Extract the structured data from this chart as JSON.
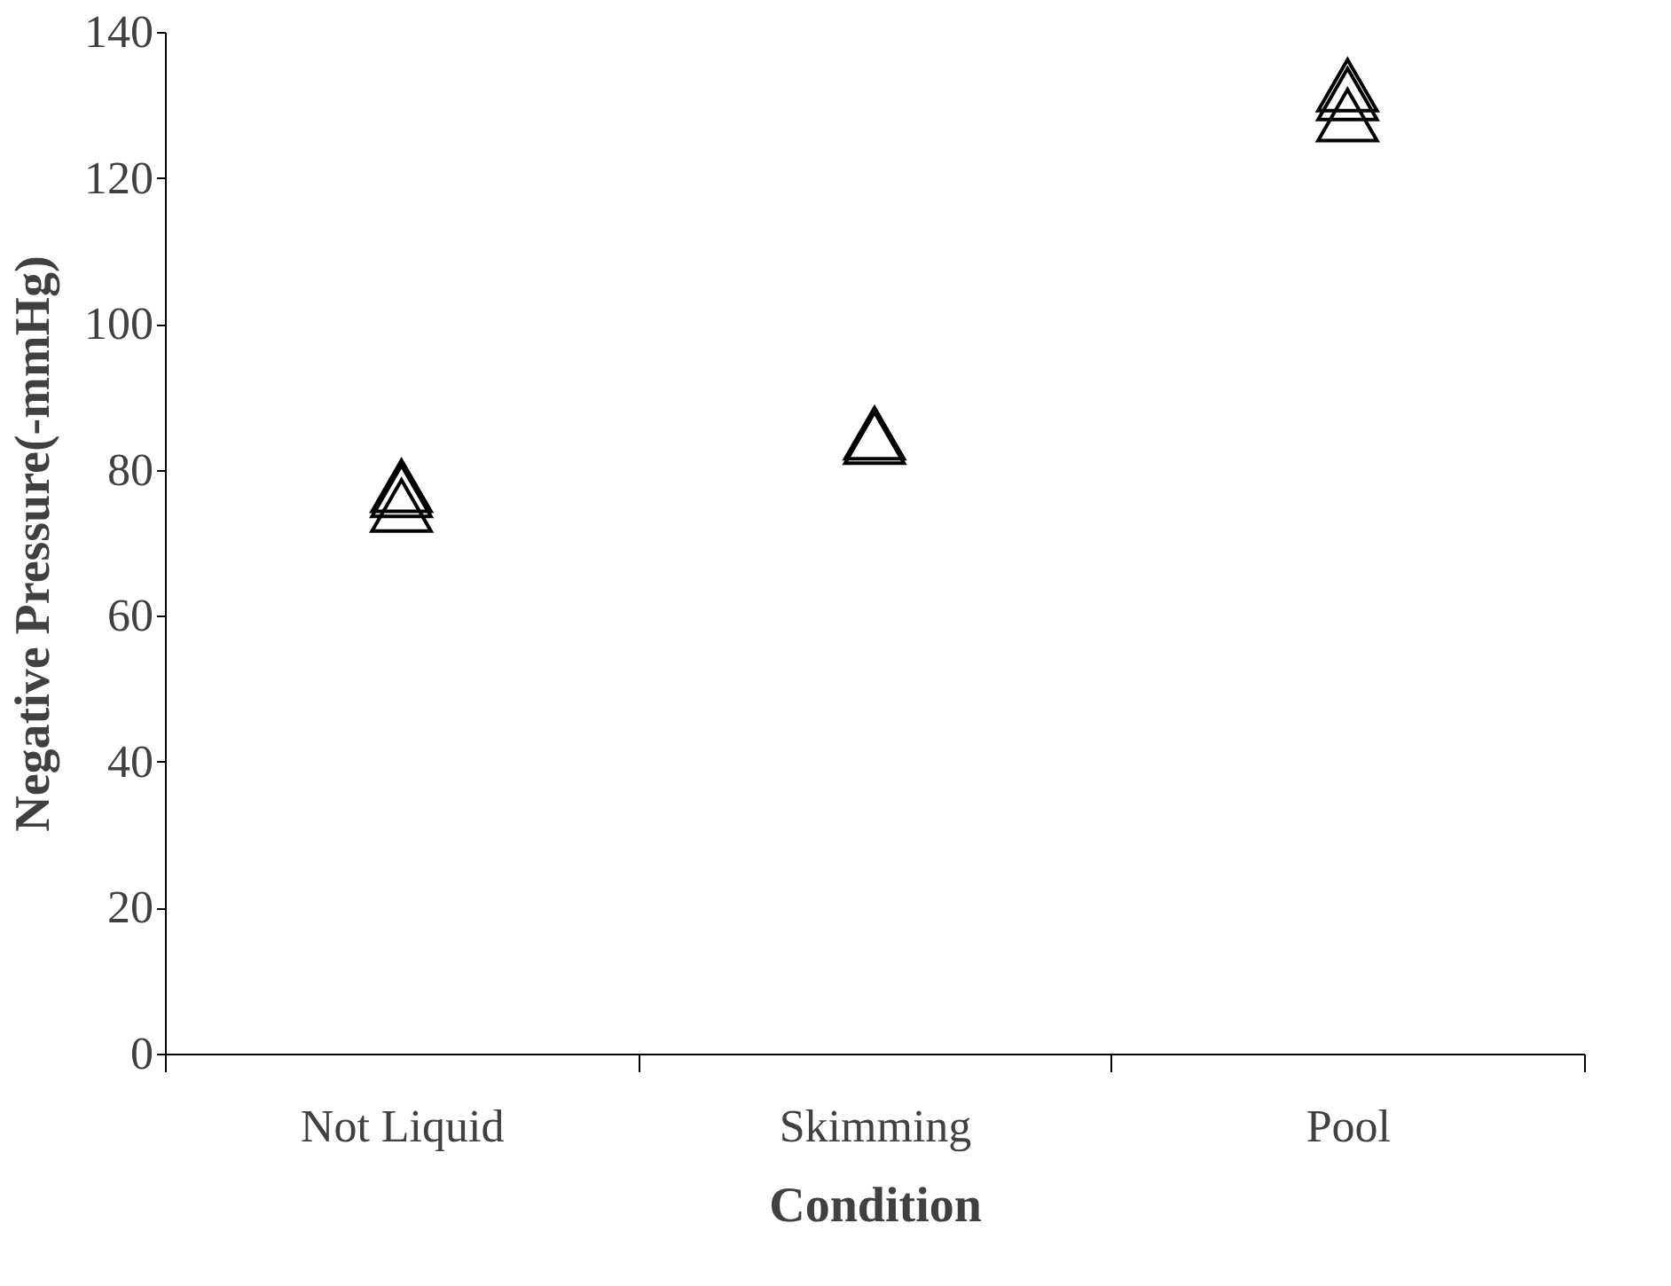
{
  "chart_data": {
    "type": "scatter",
    "xlabel": "Condition",
    "ylabel": "Negative Pressure(-mmHg)",
    "categories": [
      "Not Liquid",
      "Skimming",
      "Pool"
    ],
    "series": [
      {
        "color": "#000000",
        "values": [
          77.8,
          85,
          132.7
        ]
      },
      {
        "color": "#000000",
        "values": [
          77.1,
          84.4,
          131.5
        ]
      },
      {
        "color": "#000000",
        "values": [
          75.1,
          null,
          128.6
        ]
      }
    ],
    "ylim": [
      0,
      140
    ],
    "yticks": [
      0,
      20,
      40,
      60,
      80,
      100,
      120,
      140
    ],
    "marker": "triangle",
    "grid": false,
    "legend": false
  }
}
